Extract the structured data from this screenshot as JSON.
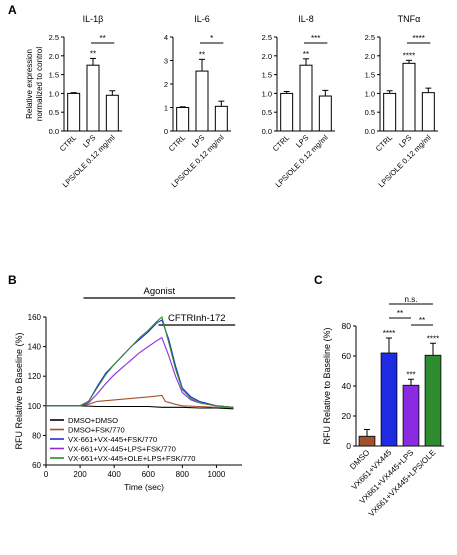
{
  "chart_data": [
    {
      "type": "bar",
      "panel": "A",
      "title": "IL-1β",
      "ylabel": "Relative expression normalized to control",
      "categories": [
        "CTRL",
        "LPS",
        "LPS/OLE 0.12 mg/ml"
      ],
      "values": [
        1.0,
        1.75,
        0.95
      ],
      "errors": [
        0.02,
        0.18,
        0.12
      ],
      "ylim": [
        0,
        2.5
      ],
      "yticks": [
        "0.0",
        "0.5",
        "1.0",
        "1.5",
        "2.0",
        "2.5"
      ],
      "annotations": [
        {
          "over": 1,
          "text": "**"
        }
      ],
      "brackets": [
        {
          "from": 1,
          "to": 2,
          "text": "**"
        }
      ]
    },
    {
      "type": "bar",
      "panel": "A",
      "title": "IL-6",
      "categories": [
        "CTRL",
        "LPS",
        "LPS/OLE 0.12 mg/ml"
      ],
      "values": [
        1.0,
        2.55,
        1.05
      ],
      "errors": [
        0.03,
        0.5,
        0.22
      ],
      "ylim": [
        0,
        4
      ],
      "yticks": [
        "0",
        "1",
        "2",
        "3",
        "4"
      ],
      "annotations": [
        {
          "over": 1,
          "text": "**"
        }
      ],
      "brackets": [
        {
          "from": 1,
          "to": 2,
          "text": "*"
        }
      ]
    },
    {
      "type": "bar",
      "panel": "A",
      "title": "IL-8",
      "categories": [
        "CTRL",
        "LPS",
        "LPS/OLE 0.12 mg/ml"
      ],
      "values": [
        1.0,
        1.75,
        0.93
      ],
      "errors": [
        0.05,
        0.17,
        0.15
      ],
      "ylim": [
        0,
        2.5
      ],
      "yticks": [
        "0.0",
        "0.5",
        "1.0",
        "1.5",
        "2.0",
        "2.5"
      ],
      "annotations": [
        {
          "over": 1,
          "text": "**"
        }
      ],
      "brackets": [
        {
          "from": 1,
          "to": 2,
          "text": "***"
        }
      ]
    },
    {
      "type": "bar",
      "panel": "A",
      "title": "TNFα",
      "categories": [
        "CTRL",
        "LPS",
        "LPS/OLE 0.12 mg/ml"
      ],
      "values": [
        1.0,
        1.8,
        1.02
      ],
      "errors": [
        0.07,
        0.08,
        0.12
      ],
      "ylim": [
        0,
        2.5
      ],
      "yticks": [
        "0.0",
        "0.5",
        "1.0",
        "1.5",
        "2.0",
        "2.5"
      ],
      "annotations": [
        {
          "over": 1,
          "text": "****"
        }
      ],
      "brackets": [
        {
          "from": 1,
          "to": 2,
          "text": "****"
        }
      ]
    },
    {
      "type": "line",
      "panel": "B",
      "xlabel": "Time (sec)",
      "ylabel": "RFU Relative to Baseline (%)",
      "xlim": [
        0,
        1150
      ],
      "ylim": [
        60,
        160
      ],
      "xticks": [
        "0",
        "200",
        "400",
        "600",
        "800",
        "1000"
      ],
      "yticks": [
        "60",
        "80",
        "100",
        "120",
        "140",
        "160"
      ],
      "bars": [
        {
          "label": "Agonist",
          "from": 220,
          "to": 1110
        },
        {
          "label": "CFTRInh-172",
          "from": 660,
          "to": 1110
        }
      ],
      "series": [
        {
          "name": "DMSO+DMSO",
          "color": "#000000",
          "x": [
            0,
            100,
            200,
            300,
            400,
            500,
            600,
            680,
            700,
            760,
            800,
            900,
            1000,
            1100
          ],
          "y": [
            100,
            100,
            100,
            99.5,
            99.5,
            99.5,
            99.5,
            99,
            99,
            99,
            99,
            98.5,
            98.5,
            98
          ]
        },
        {
          "name": "DMSO+FSK/770",
          "color": "#a0522d",
          "x": [
            0,
            100,
            200,
            250,
            300,
            400,
            500,
            600,
            680,
            700,
            760,
            800,
            900,
            1000,
            1100
          ],
          "y": [
            100,
            100,
            100,
            101,
            103,
            104,
            105,
            106,
            107,
            103,
            101,
            100,
            99.5,
            99,
            99
          ]
        },
        {
          "name": "VX-661+VX-445+FSK/770",
          "color": "#1f2be0",
          "x": [
            0,
            100,
            200,
            250,
            300,
            350,
            400,
            450,
            500,
            550,
            600,
            650,
            680,
            720,
            760,
            800,
            850,
            900,
            1000,
            1100
          ],
          "y": [
            100,
            100,
            100,
            103,
            113,
            122,
            128,
            134,
            140,
            145,
            150,
            156,
            158,
            145,
            127,
            112,
            106,
            103,
            100,
            99
          ]
        },
        {
          "name": "VX-661+VX-445+LPS+FSK/770",
          "color": "#8a2be2",
          "x": [
            0,
            100,
            200,
            250,
            300,
            350,
            400,
            450,
            500,
            550,
            600,
            650,
            680,
            720,
            760,
            800,
            850,
            900,
            1000,
            1100
          ],
          "y": [
            100,
            100,
            100,
            102,
            108,
            115,
            121,
            126,
            131,
            136,
            140,
            144,
            146,
            134,
            120,
            109,
            104,
            102,
            100,
            99
          ]
        },
        {
          "name": "VX-661+VX-445+OLE+LPS+FSK/770",
          "color": "#2e8b2e",
          "x": [
            0,
            100,
            200,
            250,
            300,
            350,
            400,
            450,
            500,
            550,
            600,
            650,
            680,
            720,
            760,
            800,
            850,
            900,
            1000,
            1100
          ],
          "y": [
            100,
            100,
            100,
            103,
            112,
            121,
            128,
            134,
            140,
            146,
            151,
            157,
            160,
            143,
            125,
            111,
            105,
            102,
            100,
            99
          ]
        }
      ]
    },
    {
      "type": "bar",
      "panel": "C",
      "ylabel": "RFU Relative to Baseline (%)",
      "categories": [
        "DMSO",
        "VX661+VX445",
        "VX661+VX445+LPS",
        "VX661+VX445+LPS/OLE"
      ],
      "values": [
        6.5,
        62,
        40.5,
        60.5
      ],
      "errors": [
        4.5,
        10,
        4,
        8
      ],
      "colors": [
        "#a0522d",
        "#1f2be0",
        "#8a2be2",
        "#2e8b2e"
      ],
      "ylim": [
        0,
        80
      ],
      "yticks": [
        "0",
        "20",
        "40",
        "60",
        "80"
      ],
      "annotations": [
        {
          "over": 1,
          "text": "****"
        },
        {
          "over": 2,
          "text": "***"
        },
        {
          "over": 3,
          "text": "****"
        }
      ],
      "brackets": [
        {
          "from": 1,
          "to": 3,
          "text": "n.s."
        },
        {
          "from": 1,
          "to": 2,
          "text": "**"
        },
        {
          "from": 2,
          "to": 3,
          "text": "**"
        }
      ]
    }
  ],
  "panel_labels": {
    "a": "A",
    "b": "B",
    "c": "C"
  },
  "colors": {
    "axis": "#000000",
    "bar_fill_A": "#ffffff"
  }
}
